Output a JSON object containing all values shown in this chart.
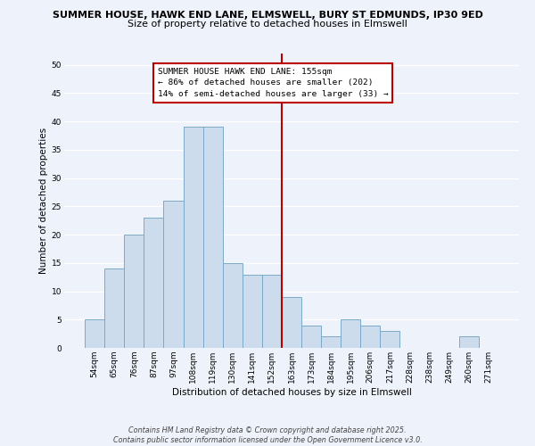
{
  "title_line1": "SUMMER HOUSE, HAWK END LANE, ELMSWELL, BURY ST EDMUNDS, IP30 9ED",
  "title_line2": "Size of property relative to detached houses in Elmswell",
  "xlabel": "Distribution of detached houses by size in Elmswell",
  "ylabel": "Number of detached properties",
  "categories": [
    "54sqm",
    "65sqm",
    "76sqm",
    "87sqm",
    "97sqm",
    "108sqm",
    "119sqm",
    "130sqm",
    "141sqm",
    "152sqm",
    "163sqm",
    "173sqm",
    "184sqm",
    "195sqm",
    "206sqm",
    "217sqm",
    "228sqm",
    "238sqm",
    "249sqm",
    "260sqm",
    "271sqm"
  ],
  "values": [
    5,
    14,
    20,
    23,
    26,
    39,
    39,
    15,
    13,
    13,
    9,
    4,
    2,
    5,
    4,
    3,
    0,
    0,
    0,
    2,
    0
  ],
  "bar_color": "#ccdcec",
  "bar_edge_color": "#7aaac8",
  "vline_x_index": 9.5,
  "vline_color": "#bb0000",
  "annotation_text": "SUMMER HOUSE HAWK END LANE: 155sqm\n← 86% of detached houses are smaller (202)\n14% of semi-detached houses are larger (33) →",
  "annotation_box_color": "#bb0000",
  "annotation_fill": "#ffffff",
  "ylim": [
    0,
    52
  ],
  "yticks": [
    0,
    5,
    10,
    15,
    20,
    25,
    30,
    35,
    40,
    45,
    50
  ],
  "bg_color": "#eef2fa",
  "grid_color": "#ffffff",
  "footer": "Contains HM Land Registry data © Crown copyright and database right 2025.\nContains public sector information licensed under the Open Government Licence v3.0.",
  "title_fontsize": 8.0,
  "subtitle_fontsize": 8.0,
  "tick_fontsize": 6.5,
  "ylabel_fontsize": 7.5,
  "xlabel_fontsize": 7.5,
  "annotation_fontsize": 6.8,
  "footer_fontsize": 5.8
}
